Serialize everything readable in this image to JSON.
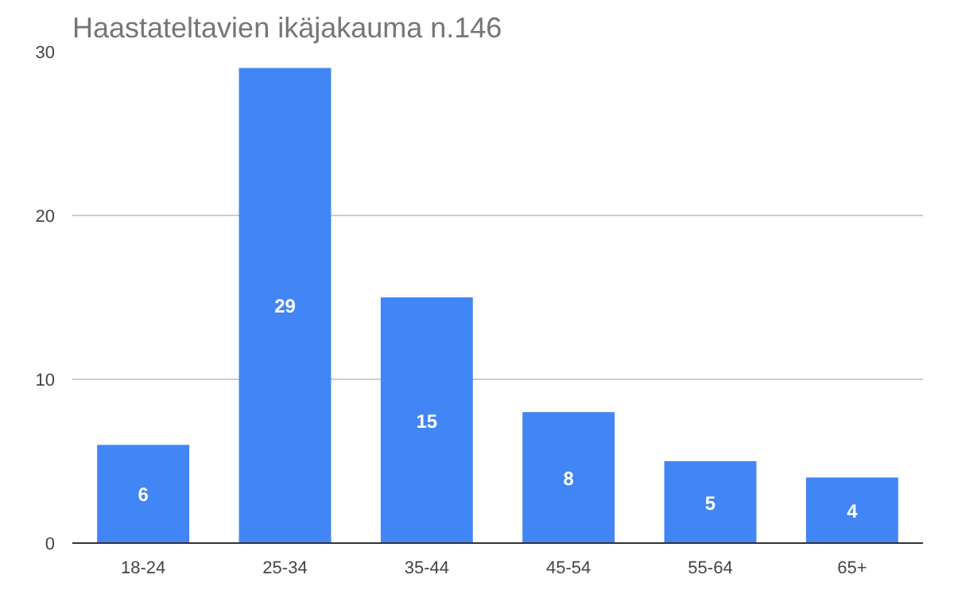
{
  "chart_data": {
    "type": "bar",
    "title": "Haastateltavien ikäjakauma n.146",
    "categories": [
      "18-24",
      "25-34",
      "35-44",
      "45-54",
      "55-64",
      "65+"
    ],
    "values": [
      6,
      29,
      15,
      8,
      5,
      4
    ],
    "color": "#4285f4",
    "ylim": [
      0,
      30
    ],
    "yticks": [
      0,
      10,
      20,
      30
    ],
    "grid": "y",
    "data_labels": true
  }
}
